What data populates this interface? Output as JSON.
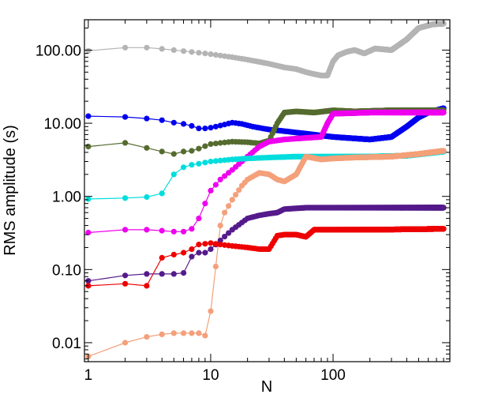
{
  "chart_data": {
    "type": "line",
    "title": "",
    "xlabel": "N",
    "ylabel": "RMS amplitude (s)",
    "x_scale": "log",
    "y_scale": "log",
    "xlim": [
      0.93,
      900
    ],
    "ylim": [
      0.0055,
      260
    ],
    "grid": false,
    "legend": "none",
    "x_ticks": [
      {
        "value": 1,
        "label": "1"
      },
      {
        "value": 10,
        "label": "10"
      },
      {
        "value": 100,
        "label": "100"
      }
    ],
    "y_ticks": [
      {
        "value": 0.01,
        "label": "0.01"
      },
      {
        "value": 0.1,
        "label": "0.10"
      },
      {
        "value": 1,
        "label": "1.00"
      },
      {
        "value": 10,
        "label": "10.00"
      },
      {
        "value": 100,
        "label": "100.00"
      }
    ],
    "series": [
      {
        "color": "#b4b4b4",
        "points": [
          [
            1,
            98
          ],
          [
            2,
            108
          ],
          [
            3,
            108
          ],
          [
            4,
            104
          ],
          [
            5,
            100
          ],
          [
            6,
            97
          ],
          [
            8,
            92
          ],
          [
            10,
            88
          ],
          [
            15,
            80
          ],
          [
            20,
            74
          ],
          [
            30,
            65
          ],
          [
            40,
            58
          ],
          [
            50,
            55
          ],
          [
            60,
            50
          ],
          [
            70,
            47
          ],
          [
            80,
            45
          ],
          [
            90,
            45
          ],
          [
            100,
            70
          ],
          [
            110,
            85
          ],
          [
            130,
            95
          ],
          [
            150,
            100
          ],
          [
            180,
            90
          ],
          [
            220,
            105
          ],
          [
            300,
            100
          ],
          [
            400,
            140
          ],
          [
            500,
            200
          ],
          [
            650,
            225
          ],
          [
            800,
            230
          ]
        ]
      },
      {
        "color": "#0000ee",
        "points": [
          [
            1,
            12.5
          ],
          [
            2,
            12.2
          ],
          [
            3,
            11.6
          ],
          [
            4,
            11
          ],
          [
            5,
            10.2
          ],
          [
            6,
            9.8
          ],
          [
            7,
            9.2
          ],
          [
            8,
            8.5
          ],
          [
            9,
            8.5
          ],
          [
            10,
            8.7
          ],
          [
            12,
            9.3
          ],
          [
            15,
            10.2
          ],
          [
            18,
            9.8
          ],
          [
            22,
            9
          ],
          [
            30,
            8.2
          ],
          [
            40,
            7.8
          ],
          [
            60,
            7.2
          ],
          [
            100,
            6.5
          ],
          [
            150,
            6.2
          ],
          [
            200,
            6
          ],
          [
            300,
            6.5
          ],
          [
            400,
            9
          ],
          [
            500,
            12
          ],
          [
            600,
            14
          ],
          [
            800,
            16
          ]
        ]
      },
      {
        "color": "#556b2f",
        "points": [
          [
            1,
            4.8
          ],
          [
            2,
            5.4
          ],
          [
            3,
            4.6
          ],
          [
            4,
            4.1
          ],
          [
            5,
            3.8
          ],
          [
            6,
            4.1
          ],
          [
            7,
            4.2
          ],
          [
            8,
            4.5
          ],
          [
            10,
            5.2
          ],
          [
            15,
            5.6
          ],
          [
            20,
            5.5
          ],
          [
            25,
            5.3
          ],
          [
            30,
            5.8
          ],
          [
            35,
            10
          ],
          [
            40,
            14
          ],
          [
            50,
            14.5
          ],
          [
            70,
            14
          ],
          [
            100,
            15
          ],
          [
            150,
            14.5
          ],
          [
            300,
            15
          ],
          [
            500,
            15
          ],
          [
            800,
            15
          ]
        ]
      },
      {
        "color": "#ee00ee",
        "points": [
          [
            1,
            0.32
          ],
          [
            2,
            0.35
          ],
          [
            3,
            0.35
          ],
          [
            4,
            0.34
          ],
          [
            5,
            0.33
          ],
          [
            6,
            0.33
          ],
          [
            7,
            0.36
          ],
          [
            8,
            0.5
          ],
          [
            9,
            0.8
          ],
          [
            10,
            1.2
          ],
          [
            12,
            1.7
          ],
          [
            15,
            2.3
          ],
          [
            20,
            3.5
          ],
          [
            25,
            4.8
          ],
          [
            30,
            5.6
          ],
          [
            40,
            6
          ],
          [
            60,
            6.3
          ],
          [
            80,
            6.5
          ],
          [
            90,
            10
          ],
          [
            100,
            13.5
          ],
          [
            200,
            14
          ],
          [
            400,
            14
          ],
          [
            800,
            14
          ]
        ]
      },
      {
        "color": "#00dddd",
        "points": [
          [
            1,
            0.92
          ],
          [
            2,
            0.95
          ],
          [
            3,
            0.98
          ],
          [
            4,
            1.1
          ],
          [
            5,
            2
          ],
          [
            6,
            2.5
          ],
          [
            7,
            2.7
          ],
          [
            8,
            2.8
          ],
          [
            10,
            3
          ],
          [
            15,
            3.2
          ],
          [
            20,
            3.3
          ],
          [
            30,
            3.4
          ],
          [
            50,
            3.5
          ],
          [
            100,
            3.5
          ],
          [
            200,
            3.5
          ],
          [
            400,
            3.6
          ],
          [
            800,
            4.1
          ]
        ]
      },
      {
        "color": "#f4a07a",
        "points": [
          [
            1,
            0.0065
          ],
          [
            2,
            0.01
          ],
          [
            3,
            0.012
          ],
          [
            4,
            0.013
          ],
          [
            5,
            0.0135
          ],
          [
            6,
            0.0135
          ],
          [
            7,
            0.0135
          ],
          [
            8,
            0.0135
          ],
          [
            9,
            0.0125
          ],
          [
            10,
            0.027
          ],
          [
            11,
            0.11
          ],
          [
            12,
            0.4
          ],
          [
            13,
            0.6
          ],
          [
            15,
            0.9
          ],
          [
            18,
            1.4
          ],
          [
            20,
            1.7
          ],
          [
            25,
            2.1
          ],
          [
            30,
            2
          ],
          [
            35,
            1.7
          ],
          [
            40,
            1.6
          ],
          [
            50,
            2
          ],
          [
            60,
            3.5
          ],
          [
            80,
            3.2
          ],
          [
            100,
            3.3
          ],
          [
            150,
            3.4
          ],
          [
            300,
            3.5
          ],
          [
            500,
            3.8
          ],
          [
            800,
            4.2
          ]
        ]
      },
      {
        "color": "#551a8b",
        "points": [
          [
            1,
            0.07
          ],
          [
            2,
            0.083
          ],
          [
            3,
            0.087
          ],
          [
            4,
            0.087
          ],
          [
            5,
            0.087
          ],
          [
            6,
            0.09
          ],
          [
            7,
            0.15
          ],
          [
            8,
            0.17
          ],
          [
            9,
            0.17
          ],
          [
            10,
            0.19
          ],
          [
            12,
            0.25
          ],
          [
            15,
            0.35
          ],
          [
            20,
            0.5
          ],
          [
            25,
            0.55
          ],
          [
            30,
            0.58
          ],
          [
            35,
            0.6
          ],
          [
            40,
            0.67
          ],
          [
            60,
            0.7
          ],
          [
            100,
            0.7
          ],
          [
            300,
            0.7
          ],
          [
            800,
            0.7
          ]
        ]
      },
      {
        "color": "#ee0000",
        "points": [
          [
            1,
            0.06
          ],
          [
            2,
            0.064
          ],
          [
            3,
            0.06
          ],
          [
            4,
            0.145
          ],
          [
            5,
            0.16
          ],
          [
            6,
            0.17
          ],
          [
            7,
            0.19
          ],
          [
            8,
            0.22
          ],
          [
            10,
            0.23
          ],
          [
            12,
            0.22
          ],
          [
            15,
            0.21
          ],
          [
            20,
            0.2
          ],
          [
            25,
            0.19
          ],
          [
            30,
            0.19
          ],
          [
            35,
            0.29
          ],
          [
            40,
            0.3
          ],
          [
            50,
            0.3
          ],
          [
            60,
            0.28
          ],
          [
            70,
            0.35
          ],
          [
            100,
            0.35
          ],
          [
            200,
            0.35
          ],
          [
            800,
            0.36
          ]
        ]
      }
    ]
  }
}
